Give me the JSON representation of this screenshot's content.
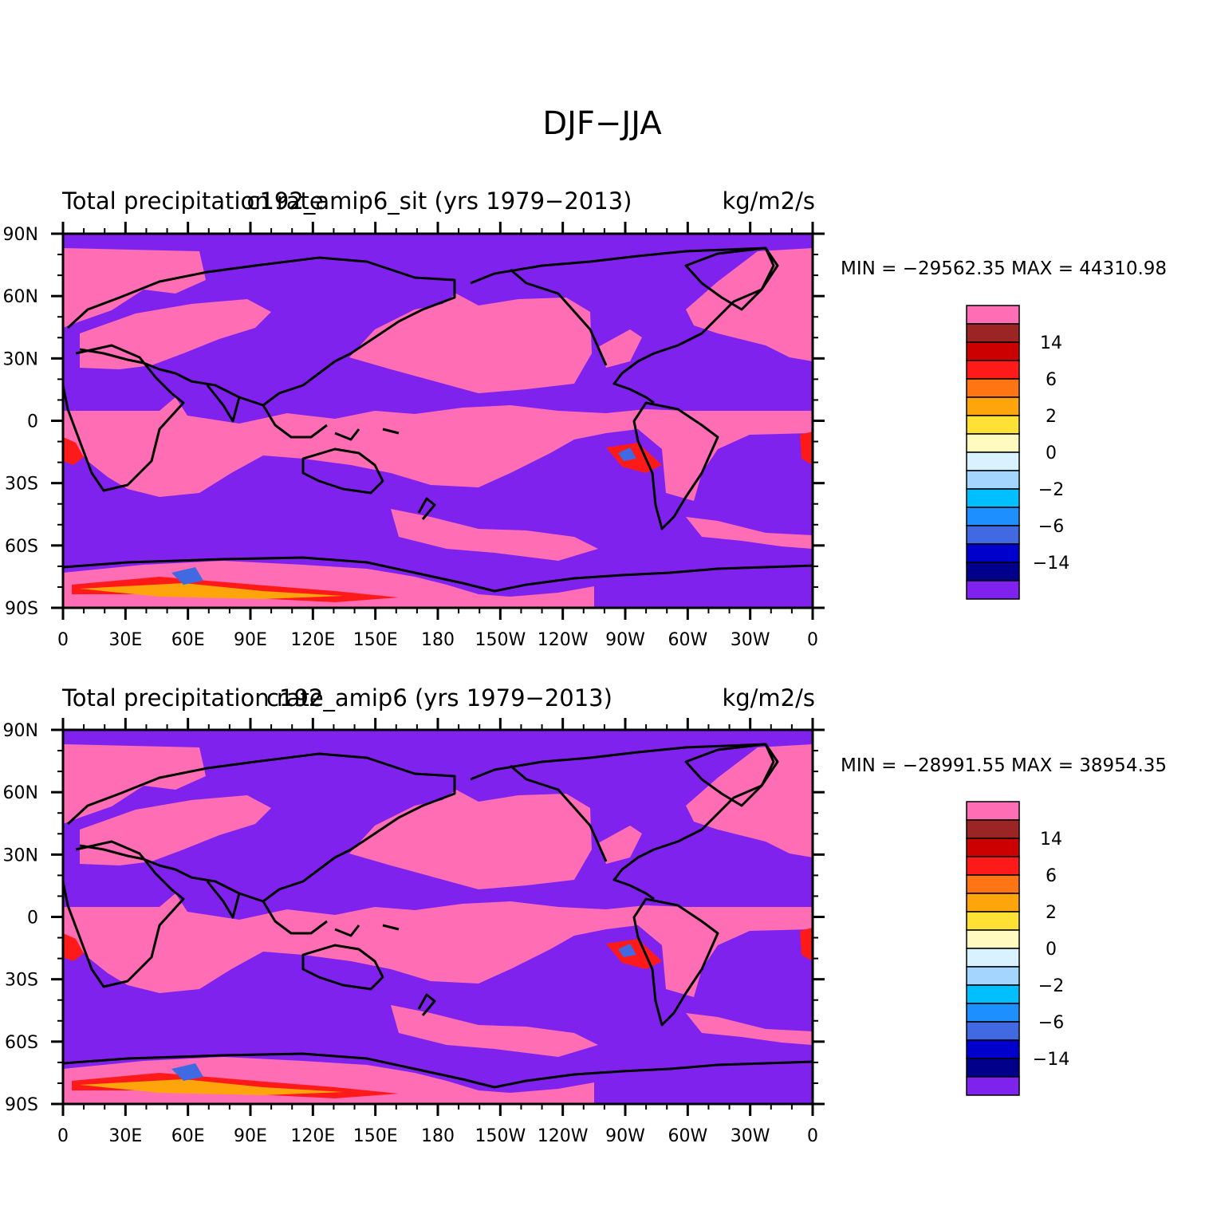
{
  "figure": {
    "title": "DJF−JJA"
  },
  "panels": [
    {
      "left_title": "Total precipitation rate",
      "center_title": "c192_amip6_sit (yrs 1979−2013)",
      "units": "kg/m2/s",
      "min_max": "MIN = −29562.35 MAX = 44310.98"
    },
    {
      "left_title": "Total precipitation rate",
      "center_title": "c192_amip6 (yrs 1979−2013)",
      "units": "kg/m2/s",
      "min_max": "MIN = −28991.55 MAX = 38954.35"
    }
  ],
  "lat_labels": [
    "90N",
    "60N",
    "30N",
    "0",
    "30S",
    "60S",
    "90S"
  ],
  "lon_labels": [
    "0",
    "30E",
    "60E",
    "90E",
    "120E",
    "150E",
    "180",
    "150W",
    "120W",
    "90W",
    "60W",
    "30W",
    "0"
  ],
  "colorbar": {
    "colors": [
      "#ff6eb4",
      "#9b2424",
      "#cc0000",
      "#ff1a1a",
      "#ff7514",
      "#ffa50c",
      "#ffe135",
      "#fffbc0",
      "#d8f3ff",
      "#a3d5ff",
      "#00bfff",
      "#1e8fff",
      "#4169e1",
      "#0000cd",
      "#00008b",
      "#8022ee"
    ],
    "labels": [
      "14",
      "6",
      "2",
      "0",
      "−2",
      "−6",
      "−14"
    ]
  },
  "colors": {
    "negative_fill": "#8022ee",
    "positive_fill": "#ff6eb4"
  }
}
